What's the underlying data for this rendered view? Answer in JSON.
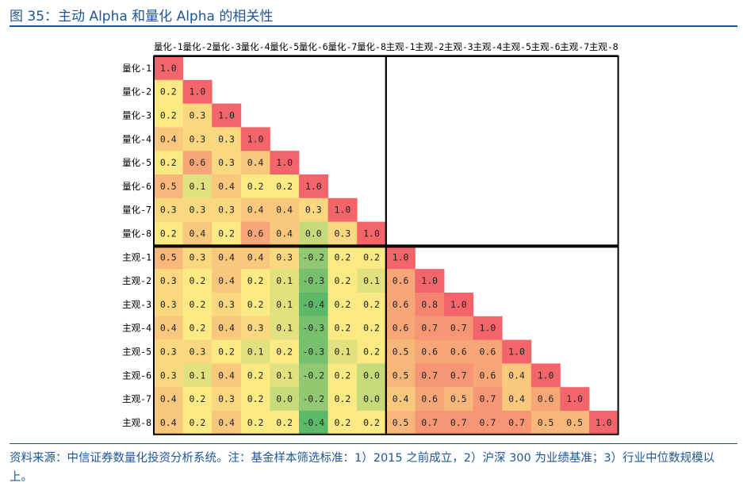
{
  "title": "图 35：主动 Alpha 和量化 Alpha 的相关性",
  "source": "资料来源：中信证券数量化投资分析系统。注：基金样本筛选标准：1）2015 之前成立，2）沪深 300 为业绩基准；3）行业中位数规模以上。",
  "chart_data": {
    "type": "heatmap",
    "labels": [
      "量化-1",
      "量化-2",
      "量化-3",
      "量化-4",
      "量化-5",
      "量化-6",
      "量化-7",
      "量化-8",
      "主观-1",
      "主观-2",
      "主观-3",
      "主观-4",
      "主观-5",
      "主观-6",
      "主观-7",
      "主观-8"
    ],
    "rows": [
      [
        "1.0"
      ],
      [
        "0.2",
        "1.0"
      ],
      [
        "0.2",
        "0.3",
        "1.0"
      ],
      [
        "0.4",
        "0.3",
        "0.3",
        "1.0"
      ],
      [
        "0.2",
        "0.6",
        "0.3",
        "0.4",
        "1.0"
      ],
      [
        "0.5",
        "0.1",
        "0.4",
        "0.2",
        "0.2",
        "1.0"
      ],
      [
        "0.3",
        "0.3",
        "0.3",
        "0.4",
        "0.4",
        "0.3",
        "1.0"
      ],
      [
        "0.2",
        "0.4",
        "0.2",
        "0.6",
        "0.4",
        "0.0",
        "0.3",
        "1.0"
      ],
      [
        "0.5",
        "0.3",
        "0.4",
        "0.4",
        "0.3",
        "-0.2",
        "0.2",
        "0.2",
        "1.0"
      ],
      [
        "0.3",
        "0.2",
        "0.4",
        "0.2",
        "0.1",
        "-0.3",
        "0.2",
        "0.1",
        "0.6",
        "1.0"
      ],
      [
        "0.3",
        "0.2",
        "0.3",
        "0.2",
        "0.1",
        "-0.4",
        "0.2",
        "0.2",
        "0.6",
        "0.8",
        "1.0"
      ],
      [
        "0.4",
        "0.2",
        "0.4",
        "0.3",
        "0.1",
        "-0.3",
        "0.2",
        "0.2",
        "0.6",
        "0.7",
        "0.7",
        "1.0"
      ],
      [
        "0.3",
        "0.3",
        "0.2",
        "0.1",
        "0.2",
        "-0.3",
        "0.1",
        "0.2",
        "0.5",
        "0.6",
        "0.6",
        "0.6",
        "1.0"
      ],
      [
        "0.3",
        "0.1",
        "0.4",
        "0.2",
        "0.1",
        "-0.2",
        "0.2",
        "0.0",
        "0.5",
        "0.7",
        "0.7",
        "0.6",
        "0.4",
        "1.0"
      ],
      [
        "0.4",
        "0.2",
        "0.3",
        "0.2",
        "0.0",
        "-0.2",
        "0.2",
        "0.0",
        "0.4",
        "0.6",
        "0.5",
        "0.7",
        "0.4",
        "0.6",
        "1.0"
      ],
      [
        "0.4",
        "0.2",
        "0.4",
        "0.2",
        "0.2",
        "-0.4",
        "0.2",
        "0.2",
        "0.5",
        "0.7",
        "0.7",
        "0.7",
        "0.7",
        "0.5",
        "0.5",
        "1.0"
      ]
    ],
    "colors": {
      "low": "#5db86a",
      "mid": "#fbe983",
      "high": "#f3646b"
    },
    "color_range": [
      -0.4,
      0.2,
      1.0
    ],
    "groups": [
      "量化",
      "主观"
    ]
  }
}
